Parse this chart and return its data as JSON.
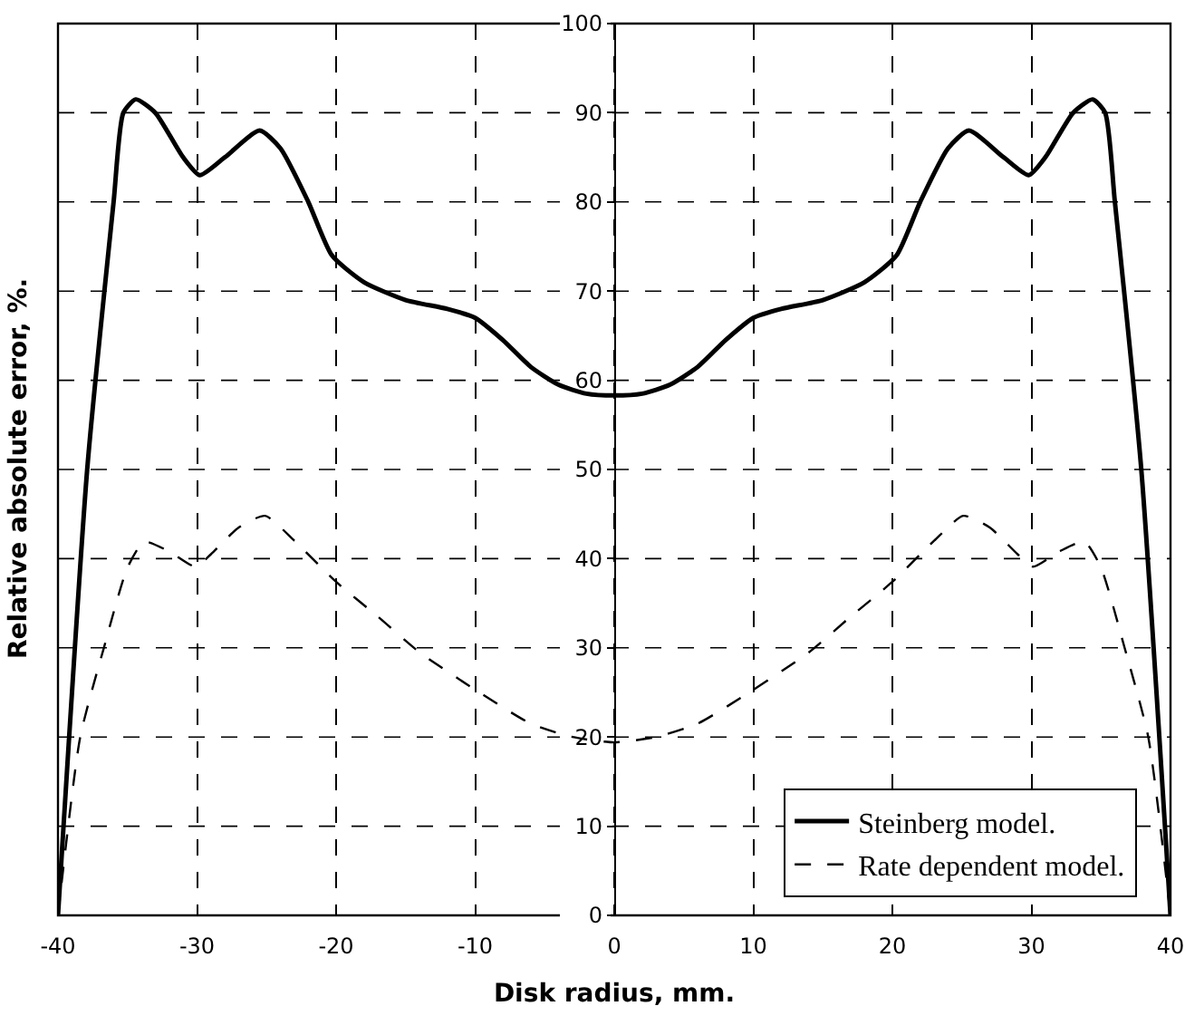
{
  "chart_data": {
    "type": "line",
    "xlabel": "Disk radius, mm.",
    "ylabel": "Relative absolute error, %.",
    "xlim": [
      -40,
      40
    ],
    "xticks": [
      -40,
      -30,
      -20,
      -10,
      0,
      10,
      20,
      30,
      40
    ],
    "ylim": [
      0,
      100
    ],
    "yticks": [
      0,
      10,
      20,
      30,
      40,
      50,
      60,
      70,
      80,
      90,
      100
    ],
    "grid": true,
    "legend": "bottom right",
    "marker": "none",
    "series": [
      {
        "name": "Steinberg model.",
        "color": "#000000",
        "line_style": "solid",
        "x": [
          -40,
          -37.9,
          -36,
          -35.3,
          -34.4,
          -33,
          -31,
          -29.8,
          -28,
          -25.5,
          -24,
          -22,
          -20.3,
          -18,
          -15,
          -12,
          -10,
          -8,
          -6,
          -4,
          -2,
          0,
          2,
          4,
          6,
          8,
          10,
          12,
          15,
          18,
          20.3,
          22,
          24,
          25.5,
          28,
          29.8,
          31,
          33,
          34.4,
          35.3,
          36,
          37.9,
          40
        ],
        "values": [
          0,
          50,
          80,
          90,
          91.5,
          90,
          85,
          83,
          85,
          88,
          86,
          80,
          74,
          71,
          69,
          68,
          67,
          64.5,
          61.5,
          59.5,
          58.5,
          58.3,
          58.5,
          59.5,
          61.5,
          64.5,
          67,
          68,
          69,
          71,
          74,
          80,
          86,
          88,
          85,
          83,
          85,
          90,
          91.5,
          90,
          80,
          50,
          0
        ]
      },
      {
        "name": "Rate dependent model.",
        "color": "#000000",
        "line_style": "dashed",
        "x": [
          -40,
          -38.4,
          -36.7,
          -35,
          -33.8,
          -32,
          -30.1,
          -29,
          -27,
          -25.1,
          -23,
          -20,
          -17,
          -14,
          -10,
          -6,
          -3,
          0,
          3,
          6,
          10,
          14,
          17,
          20,
          23,
          25.1,
          27,
          29,
          30.1,
          32,
          33.8,
          35,
          36.7,
          38.4,
          40
        ],
        "values": [
          0,
          20,
          30,
          39,
          41.9,
          40.8,
          39.1,
          40.5,
          43.5,
          44.8,
          42,
          37.4,
          33.5,
          29.5,
          25.3,
          21.5,
          20,
          19.4,
          20,
          21.5,
          25.3,
          29.5,
          33.5,
          37.4,
          42,
          44.8,
          43.5,
          40.5,
          39.1,
          40.8,
          41.9,
          39,
          30,
          20,
          0
        ]
      }
    ]
  }
}
